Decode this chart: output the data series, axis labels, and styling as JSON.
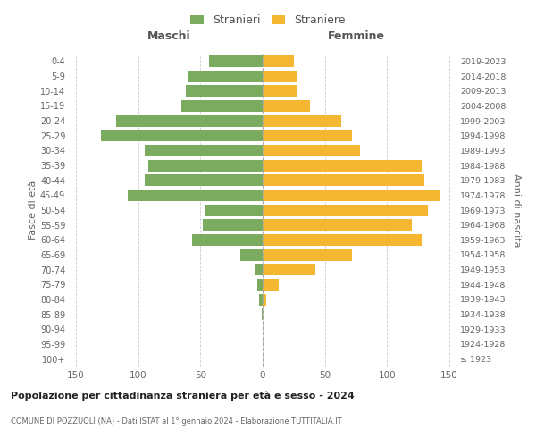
{
  "age_groups": [
    "100+",
    "95-99",
    "90-94",
    "85-89",
    "80-84",
    "75-79",
    "70-74",
    "65-69",
    "60-64",
    "55-59",
    "50-54",
    "45-49",
    "40-44",
    "35-39",
    "30-34",
    "25-29",
    "20-24",
    "15-19",
    "10-14",
    "5-9",
    "0-4"
  ],
  "birth_years": [
    "≤ 1923",
    "1924-1928",
    "1929-1933",
    "1934-1938",
    "1939-1943",
    "1944-1948",
    "1949-1953",
    "1954-1958",
    "1959-1963",
    "1964-1968",
    "1969-1973",
    "1974-1978",
    "1979-1983",
    "1984-1988",
    "1989-1993",
    "1994-1998",
    "1999-2003",
    "2004-2008",
    "2009-2013",
    "2014-2018",
    "2019-2023"
  ],
  "maschi": [
    0,
    0,
    0,
    1,
    3,
    4,
    6,
    18,
    57,
    48,
    47,
    108,
    95,
    92,
    95,
    130,
    118,
    65,
    62,
    60,
    43
  ],
  "femmine": [
    0,
    0,
    0,
    0,
    3,
    13,
    42,
    72,
    128,
    120,
    133,
    142,
    130,
    128,
    78,
    72,
    63,
    38,
    28,
    28,
    25
  ],
  "color_maschi": "#7aab5e",
  "color_femmine": "#f5b731",
  "xlim": 155,
  "title": "Popolazione per cittadinanza straniera per età e sesso - 2024",
  "subtitle": "COMUNE DI POZZUOLI (NA) - Dati ISTAT al 1° gennaio 2024 - Elaborazione TUTTITALIA.IT",
  "ylabel_left": "Fasce di età",
  "ylabel_right": "Anni di nascita",
  "label_maschi": "Stranieri",
  "label_femmine": "Straniere",
  "header_maschi": "Maschi",
  "header_femmine": "Femmine",
  "bg_color": "#ffffff",
  "grid_color": "#cccccc"
}
